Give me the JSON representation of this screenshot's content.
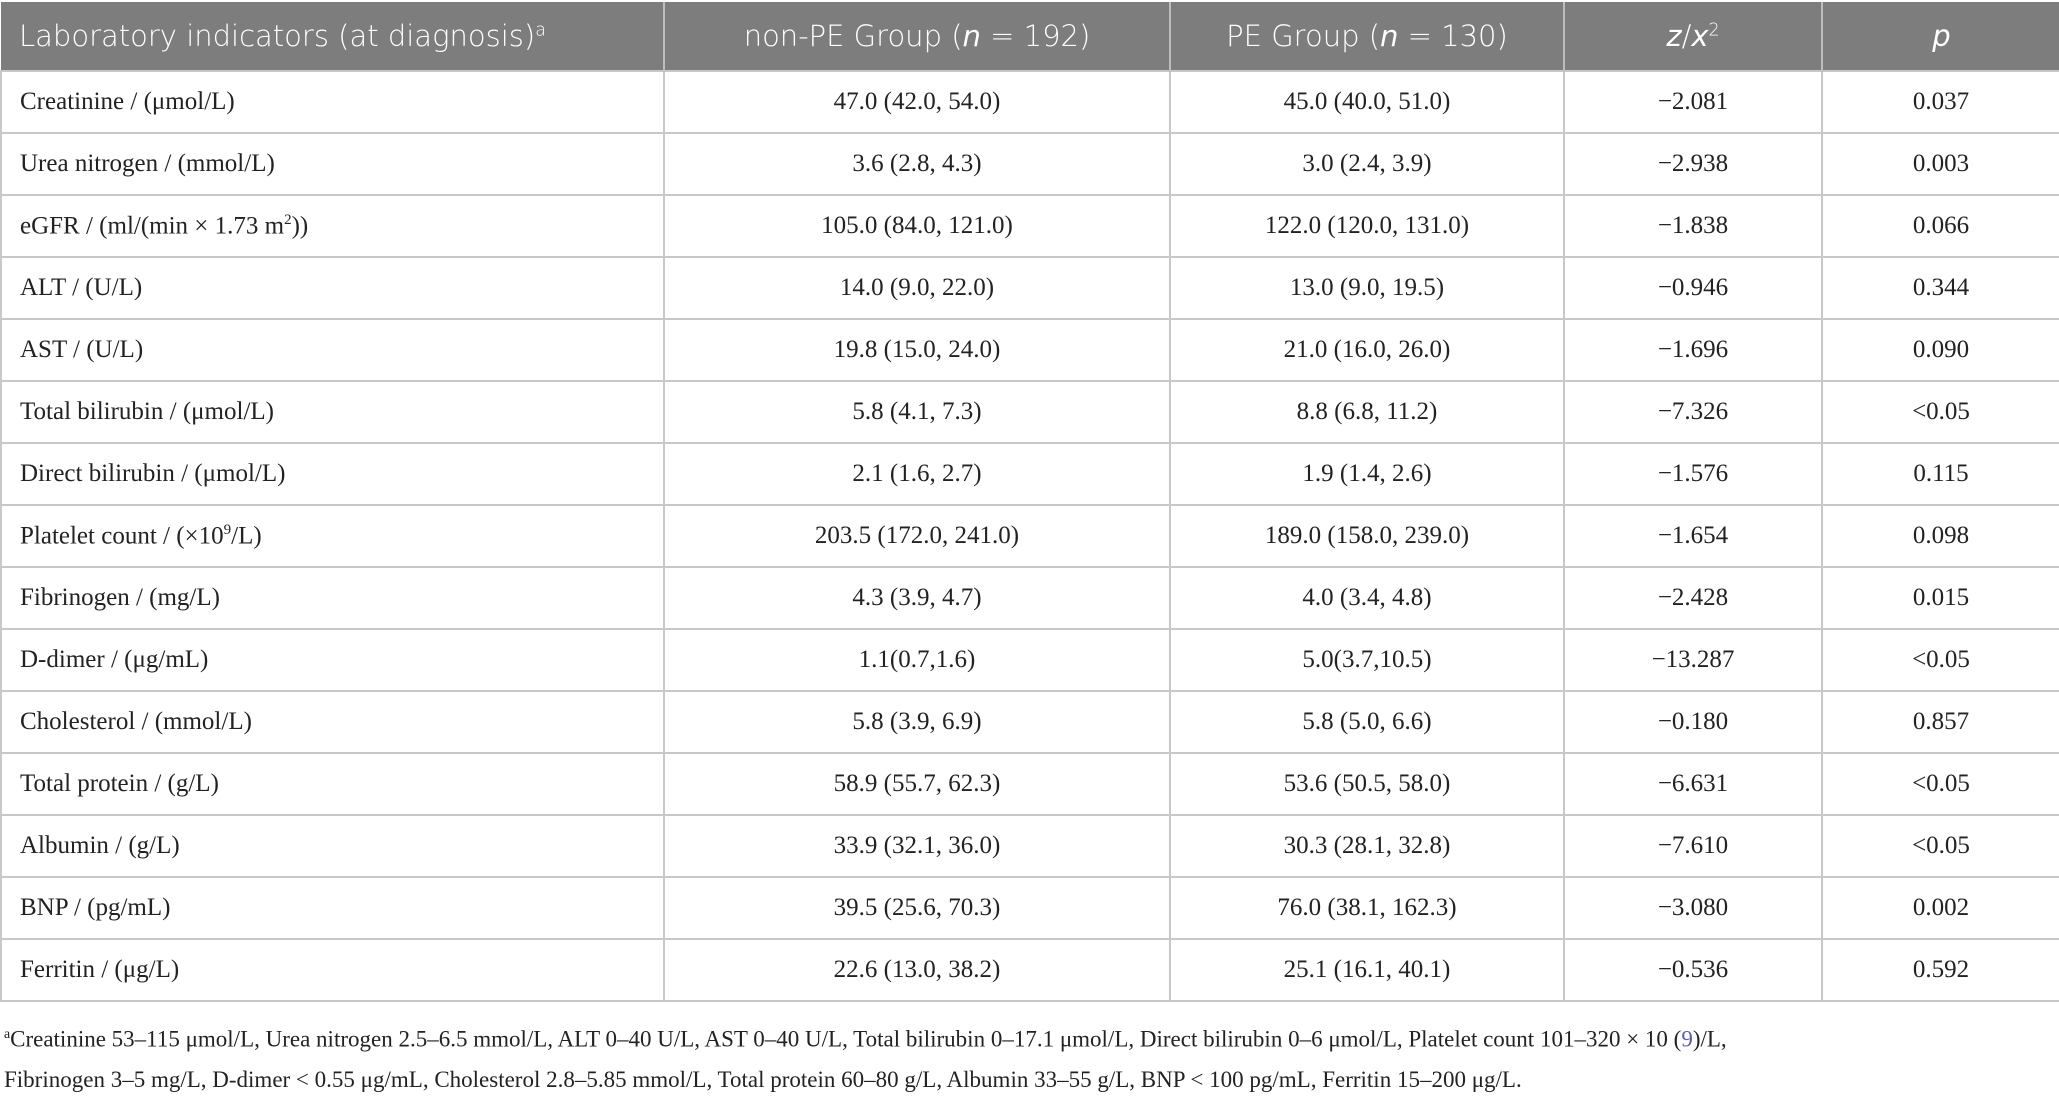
{
  "header": {
    "col1": "Laboratory indicators (at diagnosis)",
    "col1_sup": "a",
    "col2_pre": "non-PE Group (",
    "col2_n": "n",
    "col2_post": " = 192)",
    "col3_pre": "PE Group (",
    "col3_n": "n",
    "col3_post": " = 130)",
    "col4_z": "z",
    "col4_slash": "/",
    "col4_x": "x",
    "col4_sup": "2",
    "col5": "p"
  },
  "rows": [
    {
      "label": "Creatinine / (μmol/L)",
      "nonpe": "47.0 (42.0, 54.0)",
      "pe": "45.0 (40.0, 51.0)",
      "z": "−2.081",
      "p": "0.037"
    },
    {
      "label": "Urea nitrogen / (mmol/L)",
      "nonpe": "3.6 (2.8, 4.3)",
      "pe": "3.0 (2.4, 3.9)",
      "z": "−2.938",
      "p": "0.003"
    },
    {
      "label": "eGFR / (ml/(min × 1.73 m",
      "label_sup": "2",
      "label_end": "))",
      "nonpe": "105.0 (84.0, 121.0)",
      "pe": "122.0 (120.0, 131.0)",
      "z": "−1.838",
      "p": "0.066"
    },
    {
      "label": "ALT / (U/L)",
      "nonpe": "14.0 (9.0, 22.0)",
      "pe": "13.0 (9.0, 19.5)",
      "z": "−0.946",
      "p": "0.344"
    },
    {
      "label": "AST / (U/L)",
      "nonpe": "19.8 (15.0, 24.0)",
      "pe": "21.0 (16.0, 26.0)",
      "z": "−1.696",
      "p": "0.090"
    },
    {
      "label": "Total bilirubin / (μmol/L)",
      "nonpe": "5.8 (4.1, 7.3)",
      "pe": "8.8 (6.8, 11.2)",
      "z": "−7.326",
      "p": "<0.05"
    },
    {
      "label": "Direct bilirubin / (μmol/L)",
      "nonpe": "2.1 (1.6, 2.7)",
      "pe": "1.9 (1.4, 2.6)",
      "z": "−1.576",
      "p": "0.115"
    },
    {
      "label": "Platelet count / (×10",
      "label_sup": "9",
      "label_end": "/L)",
      "nonpe": "203.5 (172.0, 241.0)",
      "pe": "189.0 (158.0, 239.0)",
      "z": "−1.654",
      "p": "0.098"
    },
    {
      "label": "Fibrinogen / (mg/L)",
      "nonpe": "4.3 (3.9, 4.7)",
      "pe": "4.0 (3.4, 4.8)",
      "z": "−2.428",
      "p": "0.015"
    },
    {
      "label": "D-dimer / (μg/mL)",
      "nonpe": "1.1(0.7,1.6)",
      "pe": "5.0(3.7,10.5)",
      "z": "−13.287",
      "p": "<0.05"
    },
    {
      "label": "Cholesterol / (mmol/L)",
      "nonpe": "5.8 (3.9, 6.9)",
      "pe": "5.8 (5.0, 6.6)",
      "z": "−0.180",
      "p": "0.857"
    },
    {
      "label": "Total protein / (g/L)",
      "nonpe": "58.9 (55.7, 62.3)",
      "pe": "53.6 (50.5, 58.0)",
      "z": "−6.631",
      "p": "<0.05"
    },
    {
      "label": "Albumin / (g/L)",
      "nonpe": "33.9 (32.1, 36.0)",
      "pe": "30.3 (28.1, 32.8)",
      "z": "−7.610",
      "p": "<0.05"
    },
    {
      "label": "BNP / (pg/mL)",
      "nonpe": "39.5 (25.6, 70.3)",
      "pe": "76.0 (38.1, 162.3)",
      "z": "−3.080",
      "p": "0.002"
    },
    {
      "label": "Ferritin / (μg/L)",
      "nonpe": "22.6 (13.0, 38.2)",
      "pe": "25.1 (16.1, 40.1)",
      "z": "−0.536",
      "p": "0.592"
    }
  ],
  "footnote": {
    "sup": "a",
    "line1_pre": "Creatinine 53–115 μmol/L, Urea nitrogen 2.5–6.5 mmol/L, ALT 0–40 U/L, AST 0–40 U/L, Total bilirubin 0–17.1 μmol/L, Direct bilirubin 0–6 μmol/L, Platelet count 101–320 × 10 (",
    "ref": "9",
    "line1_post": ")/L,",
    "line2": "Fibrinogen 3–5 mg/L, D-dimer < 0.55 μg/mL, Cholesterol 2.8–5.85 mmol/L, Total protein 60–80 g/L, Albumin 33–55 g/L, BNP < 100 pg/mL, Ferritin 15–200 μg/L."
  }
}
